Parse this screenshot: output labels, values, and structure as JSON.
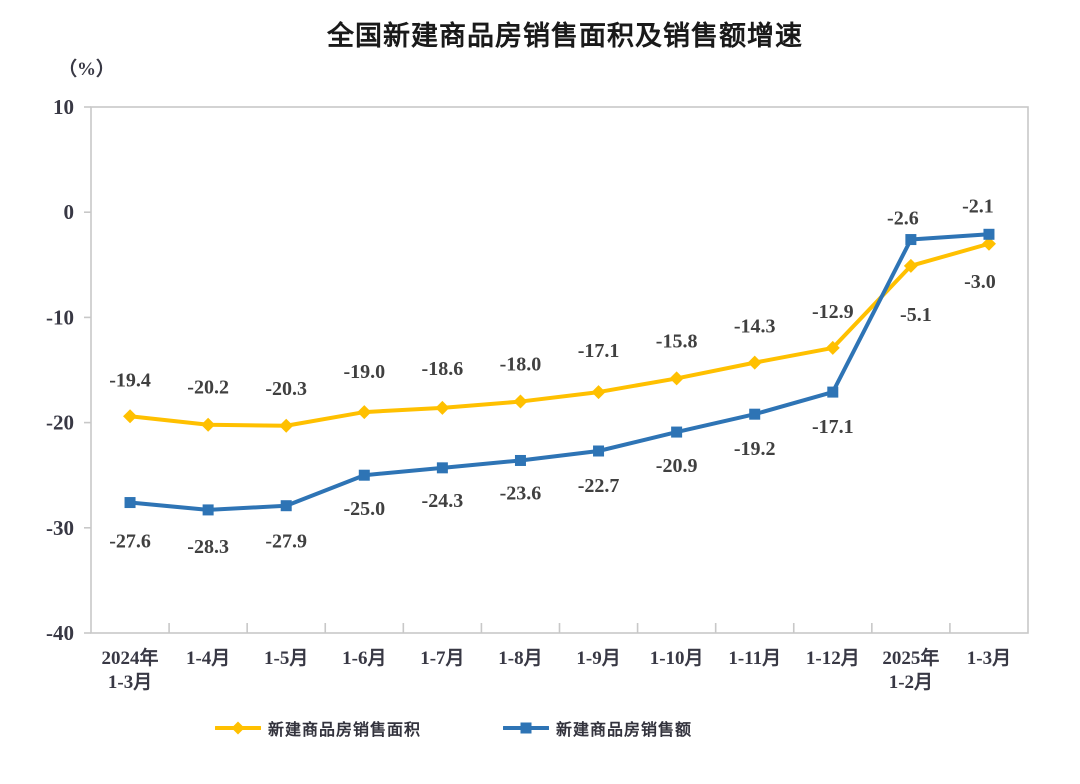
{
  "title": "全国新建商品房销售面积及销售额增速",
  "y_axis_unit": "（%）",
  "chart_data": {
    "type": "line",
    "title": "全国新建商品房销售面积及销售额增速",
    "y_unit": "（%）",
    "categories": [
      [
        "2024年",
        "1-3月"
      ],
      [
        "1-4月"
      ],
      [
        "1-5月"
      ],
      [
        "1-6月"
      ],
      [
        "1-7月"
      ],
      [
        "1-8月"
      ],
      [
        "1-9月"
      ],
      [
        "1-10月"
      ],
      [
        "1-11月"
      ],
      [
        "1-12月"
      ],
      [
        "2025年",
        "1-2月"
      ],
      [
        "1-3月"
      ]
    ],
    "ylim": [
      -40,
      10
    ],
    "y_ticks": [
      10,
      0,
      -10,
      -20,
      -30,
      -40
    ],
    "grid": false,
    "legend_position": "bottom",
    "colors": {
      "border": "#c8c8c8",
      "axis_text": "#383844",
      "data_label_text": "#404040",
      "title_text": "#1a1a1a"
    },
    "series": [
      {
        "name": "新建商品房销售面积",
        "color": "#FFC000",
        "marker": "diamond",
        "values": [
          -19.4,
          -20.2,
          -20.3,
          -19.0,
          -18.6,
          -18.0,
          -17.1,
          -15.8,
          -14.3,
          -12.9,
          -5.1,
          -3.0
        ],
        "label_dx": [
          0,
          0,
          0,
          0,
          0,
          0,
          0,
          0,
          0,
          0,
          5,
          -9
        ],
        "label_dy": [
          -30,
          -31,
          -31,
          -34,
          -33,
          -31,
          -35,
          -31,
          -30,
          -30,
          55,
          44
        ]
      },
      {
        "name": "新建商品房销售额",
        "color": "#2E74B5",
        "marker": "square",
        "values": [
          -27.6,
          -28.3,
          -27.9,
          -25.0,
          -24.3,
          -23.6,
          -22.7,
          -20.9,
          -19.2,
          -17.1,
          -2.6,
          -2.1
        ],
        "label_dx": [
          0,
          0,
          0,
          0,
          0,
          0,
          0,
          0,
          0,
          0,
          -8,
          -11
        ],
        "label_dy": [
          45,
          43,
          42,
          40,
          39,
          39,
          41,
          40,
          41,
          41,
          -15,
          -22
        ]
      }
    ]
  }
}
